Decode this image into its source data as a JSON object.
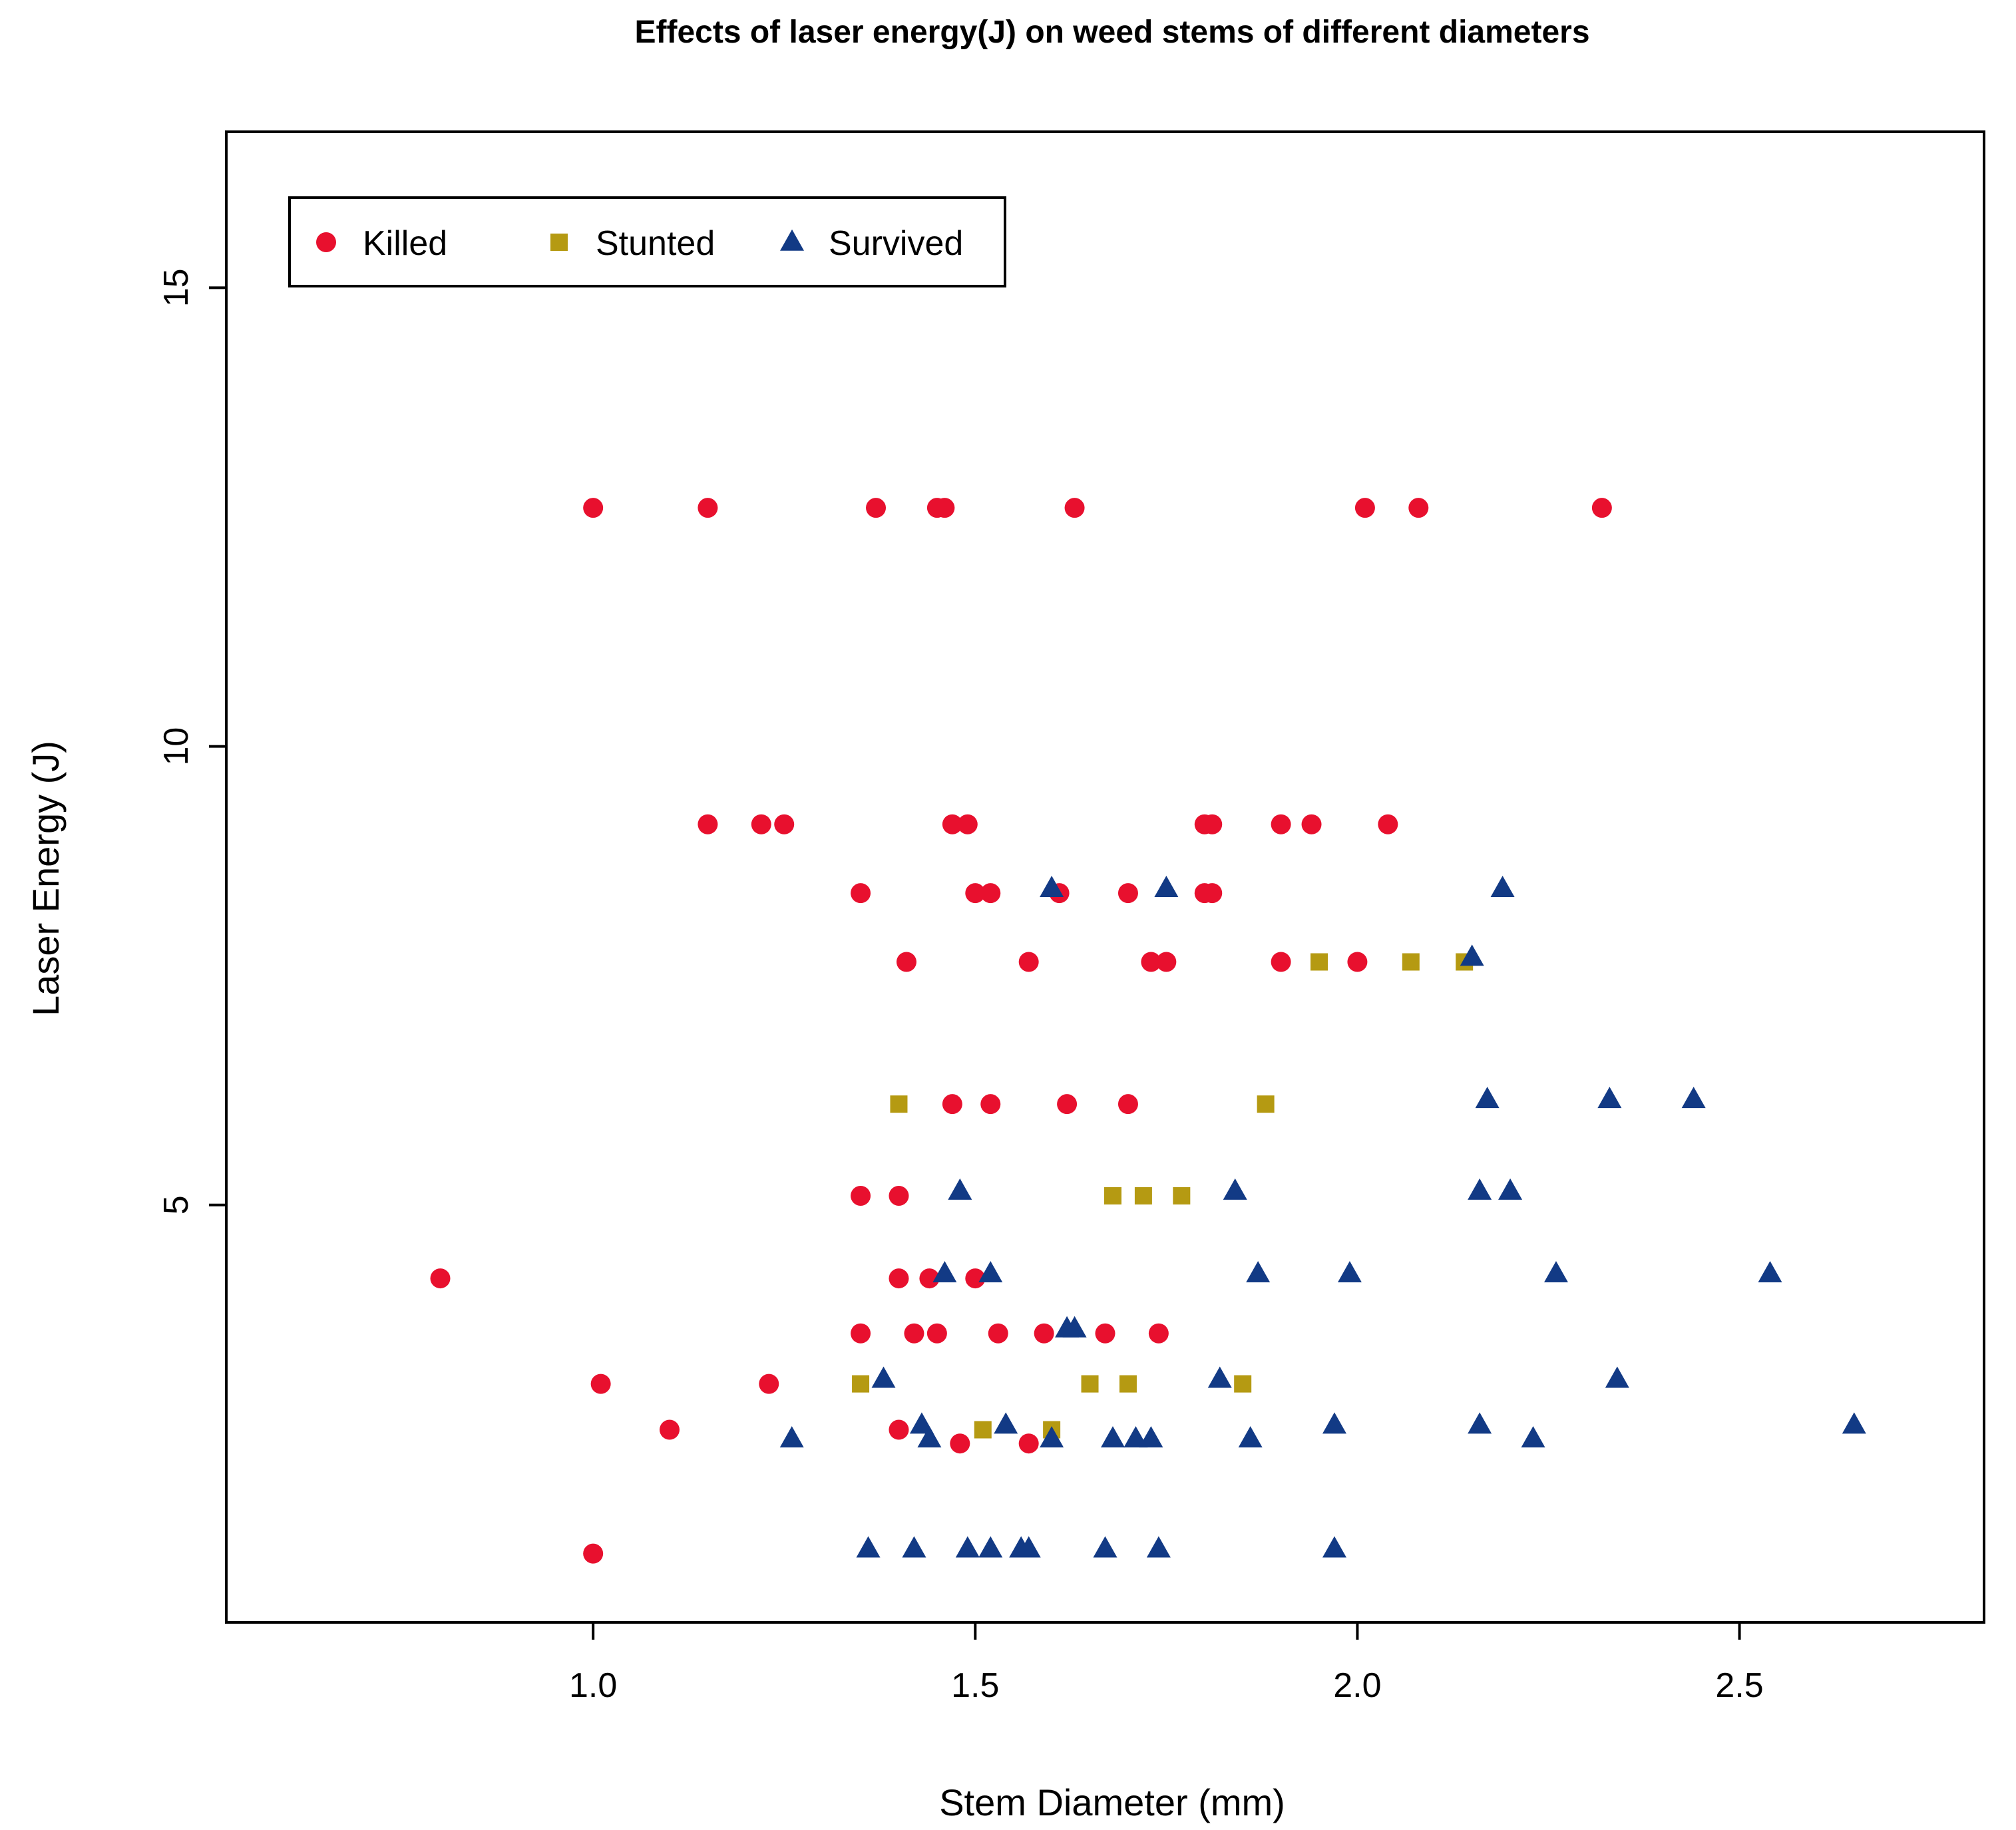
{
  "chart_data": {
    "type": "scatter",
    "title": "Effects of laser energy(J) on weed stems of different diameters",
    "xlabel": "Stem Diameter (mm)",
    "ylabel": "Laser Energy (J)",
    "xlim": [
      0.52,
      2.82
    ],
    "ylim": [
      0.45,
      16.7
    ],
    "xticks": [
      1.0,
      1.5,
      2.0,
      2.5
    ],
    "xtick_labels": [
      "1.0",
      "1.5",
      "2.0",
      "2.5"
    ],
    "yticks": [
      5,
      10,
      15
    ],
    "ytick_labels": [
      "5",
      "10",
      "15"
    ],
    "grid": false,
    "legend": {
      "position": "top-left",
      "orientation": "horizontal"
    },
    "colors": {
      "Killed": "#e8102e",
      "Stunted": "#b59a12",
      "Survived": "#123a85"
    },
    "series": [
      {
        "name": "Killed",
        "marker": "circle",
        "points": [
          [
            1.0,
            12.6
          ],
          [
            1.15,
            12.6
          ],
          [
            1.37,
            12.6
          ],
          [
            1.45,
            12.6
          ],
          [
            1.46,
            12.6
          ],
          [
            1.63,
            12.6
          ],
          [
            2.01,
            12.6
          ],
          [
            2.08,
            12.6
          ],
          [
            2.32,
            12.6
          ],
          [
            1.15,
            9.15
          ],
          [
            1.22,
            9.15
          ],
          [
            1.25,
            9.15
          ],
          [
            1.47,
            9.15
          ],
          [
            1.49,
            9.15
          ],
          [
            1.8,
            9.15
          ],
          [
            1.81,
            9.15
          ],
          [
            1.9,
            9.15
          ],
          [
            1.94,
            9.15
          ],
          [
            2.04,
            9.15
          ],
          [
            1.35,
            8.4
          ],
          [
            1.5,
            8.4
          ],
          [
            1.52,
            8.4
          ],
          [
            1.61,
            8.4
          ],
          [
            1.7,
            8.4
          ],
          [
            1.8,
            8.4
          ],
          [
            1.81,
            8.4
          ],
          [
            1.41,
            7.65
          ],
          [
            1.57,
            7.65
          ],
          [
            1.73,
            7.65
          ],
          [
            1.75,
            7.65
          ],
          [
            1.9,
            7.65
          ],
          [
            2.0,
            7.65
          ],
          [
            1.47,
            6.1
          ],
          [
            1.52,
            6.1
          ],
          [
            1.62,
            6.1
          ],
          [
            1.7,
            6.1
          ],
          [
            1.35,
            5.1
          ],
          [
            1.4,
            5.1
          ],
          [
            0.8,
            4.2
          ],
          [
            1.4,
            4.2
          ],
          [
            1.44,
            4.2
          ],
          [
            1.5,
            4.2
          ],
          [
            1.35,
            3.6
          ],
          [
            1.42,
            3.6
          ],
          [
            1.45,
            3.6
          ],
          [
            1.53,
            3.6
          ],
          [
            1.59,
            3.6
          ],
          [
            1.67,
            3.6
          ],
          [
            1.74,
            3.6
          ],
          [
            1.01,
            3.05
          ],
          [
            1.23,
            3.05
          ],
          [
            1.1,
            2.55
          ],
          [
            1.4,
            2.55
          ],
          [
            1.48,
            2.4
          ],
          [
            1.57,
            2.4
          ],
          [
            1.0,
            1.2
          ]
        ]
      },
      {
        "name": "Stunted",
        "marker": "square",
        "points": [
          [
            1.95,
            7.65
          ],
          [
            2.07,
            7.65
          ],
          [
            2.14,
            7.65
          ],
          [
            1.4,
            6.1
          ],
          [
            1.88,
            6.1
          ],
          [
            1.68,
            5.1
          ],
          [
            1.72,
            5.1
          ],
          [
            1.77,
            5.1
          ],
          [
            1.35,
            3.05
          ],
          [
            1.65,
            3.05
          ],
          [
            1.7,
            3.05
          ],
          [
            1.85,
            3.05
          ],
          [
            1.51,
            2.55
          ],
          [
            1.6,
            2.55
          ]
        ]
      },
      {
        "name": "Survived",
        "marker": "triangle",
        "points": [
          [
            1.6,
            8.45
          ],
          [
            1.75,
            8.45
          ],
          [
            2.19,
            8.45
          ],
          [
            2.15,
            7.7
          ],
          [
            2.17,
            6.15
          ],
          [
            2.33,
            6.15
          ],
          [
            2.44,
            6.15
          ],
          [
            1.48,
            5.15
          ],
          [
            1.84,
            5.15
          ],
          [
            2.16,
            5.15
          ],
          [
            2.2,
            5.15
          ],
          [
            1.46,
            4.25
          ],
          [
            1.52,
            4.25
          ],
          [
            1.87,
            4.25
          ],
          [
            1.99,
            4.25
          ],
          [
            2.26,
            4.25
          ],
          [
            2.54,
            4.25
          ],
          [
            1.62,
            3.65
          ],
          [
            1.63,
            3.65
          ],
          [
            1.38,
            3.1
          ],
          [
            1.82,
            3.1
          ],
          [
            2.34,
            3.1
          ],
          [
            1.43,
            2.6
          ],
          [
            1.54,
            2.6
          ],
          [
            1.97,
            2.6
          ],
          [
            2.16,
            2.6
          ],
          [
            2.65,
            2.6
          ],
          [
            1.26,
            2.45
          ],
          [
            1.44,
            2.45
          ],
          [
            1.6,
            2.45
          ],
          [
            1.68,
            2.45
          ],
          [
            1.71,
            2.45
          ],
          [
            1.73,
            2.45
          ],
          [
            1.86,
            2.45
          ],
          [
            2.23,
            2.45
          ],
          [
            1.36,
            1.25
          ],
          [
            1.42,
            1.25
          ],
          [
            1.49,
            1.25
          ],
          [
            1.52,
            1.25
          ],
          [
            1.56,
            1.25
          ],
          [
            1.57,
            1.25
          ],
          [
            1.67,
            1.25
          ],
          [
            1.74,
            1.25
          ],
          [
            1.97,
            1.25
          ]
        ]
      }
    ]
  }
}
